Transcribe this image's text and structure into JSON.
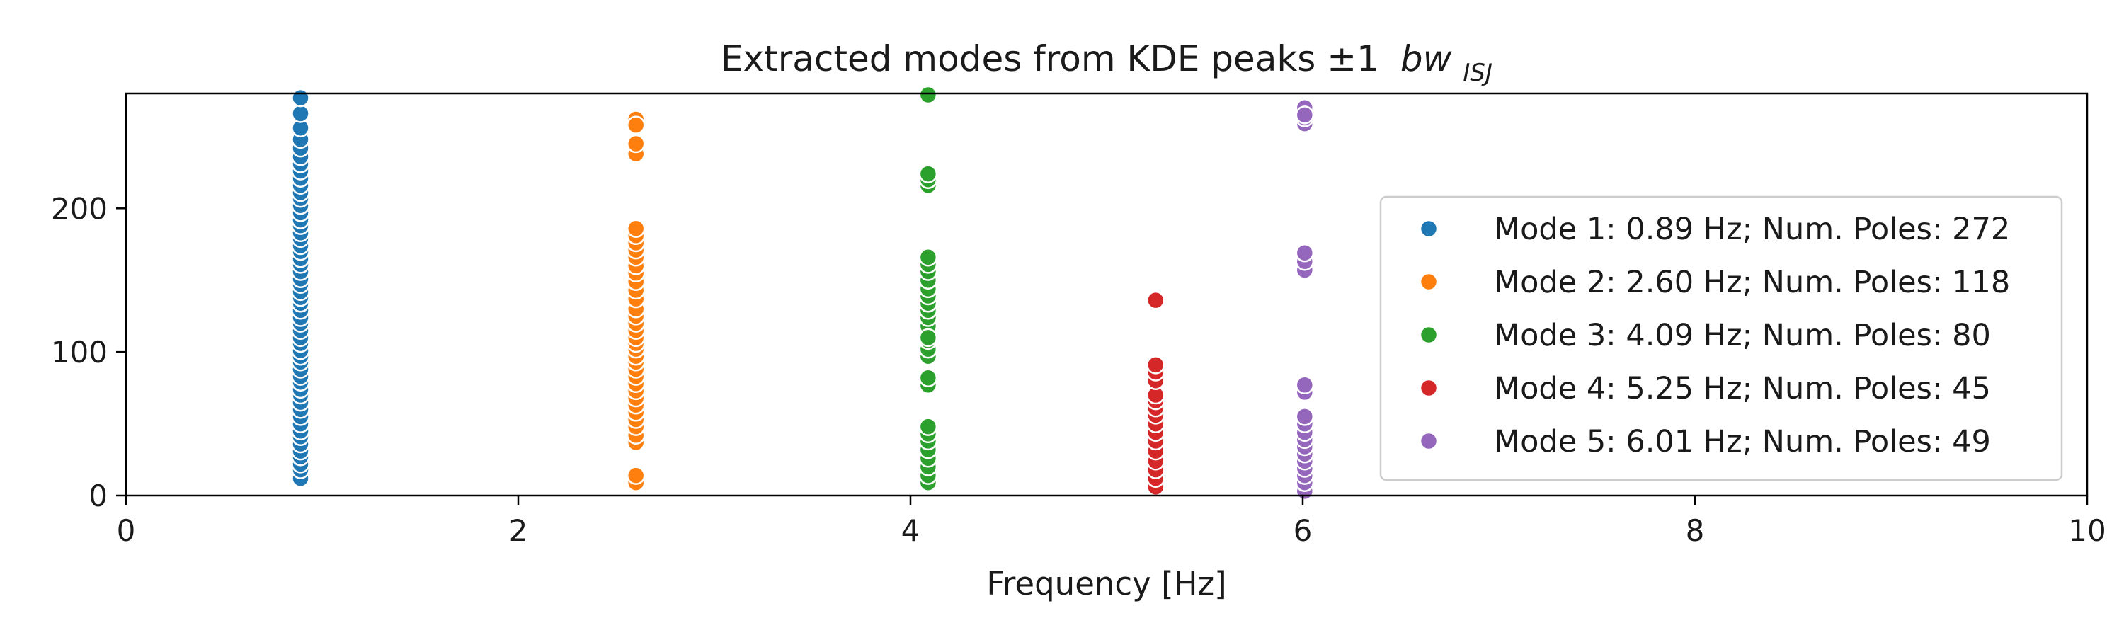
{
  "chart_data": {
    "type": "scatter",
    "title_main": "Extracted modes from KDE peaks ±1",
    "title_bw": "bw",
    "title_sub": "ISJ",
    "xlabel": "Frequency [Hz]",
    "ylabel": "",
    "xlim": [
      0,
      10
    ],
    "ylim": [
      0,
      280
    ],
    "xticks": [
      0,
      2,
      4,
      6,
      8,
      10
    ],
    "yticks": [
      0,
      100,
      200
    ],
    "xtick_labels": [
      "0",
      "2",
      "4",
      "6",
      "8",
      "10"
    ],
    "ytick_labels": [
      "0",
      "100",
      "200"
    ],
    "grid": false,
    "legend_position": "right",
    "series": [
      {
        "name": "Mode 1: 0.89 Hz; Num. Poles: 272",
        "color": "#1f77b4",
        "x": [
          0.89,
          0.89,
          0.89,
          0.89,
          0.89,
          0.89,
          0.89,
          0.89,
          0.89,
          0.89,
          0.89,
          0.89,
          0.89,
          0.89,
          0.89,
          0.89,
          0.89,
          0.89,
          0.89,
          0.89,
          0.89,
          0.89,
          0.89,
          0.89,
          0.89,
          0.89,
          0.89,
          0.89,
          0.89,
          0.89,
          0.89,
          0.89,
          0.89,
          0.89,
          0.89,
          0.89,
          0.89,
          0.89,
          0.89,
          0.89,
          0.89,
          0.89,
          0.89,
          0.89,
          0.89,
          0.89,
          0.89,
          0.89,
          0.89,
          0.89,
          0.89,
          0.89,
          0.89,
          0.89
        ],
        "y": [
          12,
          18,
          22,
          27,
          31,
          36,
          41,
          45,
          50,
          55,
          60,
          65,
          70,
          74,
          79,
          83,
          88,
          93,
          97,
          101,
          106,
          110,
          115,
          120,
          124,
          129,
          134,
          138,
          142,
          147,
          151,
          156,
          161,
          165,
          170,
          174,
          179,
          183,
          188,
          192,
          197,
          202,
          207,
          211,
          216,
          221,
          226,
          231,
          236,
          242,
          248,
          256,
          266,
          277
        ]
      },
      {
        "name": "Mode 2: 2.60 Hz; Num. Poles: 118",
        "color": "#ff7f0e",
        "x": [
          2.6,
          2.6,
          2.6,
          2.6,
          2.6,
          2.6,
          2.6,
          2.6,
          2.6,
          2.6,
          2.6,
          2.6,
          2.6,
          2.6,
          2.6,
          2.6,
          2.6,
          2.6,
          2.6,
          2.6,
          2.6,
          2.6,
          2.6,
          2.6,
          2.6,
          2.6,
          2.6,
          2.6,
          2.6,
          2.6,
          2.6,
          2.6,
          2.6,
          2.6,
          2.6,
          2.6
        ],
        "y": [
          9,
          14,
          37,
          42,
          48,
          53,
          58,
          63,
          68,
          73,
          78,
          83,
          88,
          93,
          97,
          102,
          106,
          110,
          115,
          120,
          125,
          130,
          137,
          143,
          149,
          155,
          160,
          166,
          171,
          176,
          181,
          186,
          238,
          245,
          262,
          258
        ]
      },
      {
        "name": "Mode 3: 4.09 Hz; Num. Poles: 80",
        "color": "#2ca02c",
        "x": [
          4.09,
          4.09,
          4.09,
          4.09,
          4.09,
          4.09,
          4.09,
          4.09,
          4.09,
          4.09,
          4.09,
          4.09,
          4.09,
          4.09,
          4.09,
          4.09,
          4.09,
          4.09,
          4.09,
          4.09,
          4.09,
          4.09,
          4.09,
          4.09,
          4.09,
          4.09,
          4.09,
          4.09,
          4.09
        ],
        "y": [
          9,
          14,
          20,
          26,
          32,
          38,
          43,
          48,
          77,
          82,
          97,
          102,
          108,
          113,
          118,
          124,
          129,
          134,
          139,
          144,
          150,
          156,
          161,
          166,
          216,
          220,
          224,
          279,
          110
        ]
      },
      {
        "name": "Mode 4: 5.25 Hz; Num. Poles: 45",
        "color": "#d62728",
        "x": [
          5.25,
          5.25,
          5.25,
          5.25,
          5.25,
          5.25,
          5.25,
          5.25,
          5.25,
          5.25,
          5.25,
          5.25,
          5.25,
          5.25,
          5.25,
          5.25
        ],
        "y": [
          6,
          12,
          18,
          24,
          31,
          38,
          44,
          50,
          56,
          61,
          66,
          70,
          80,
          86,
          91,
          136
        ]
      },
      {
        "name": "Mode 5: 6.01 Hz; Num. Poles: 49",
        "color": "#9467bd",
        "x": [
          6.01,
          6.01,
          6.01,
          6.01,
          6.01,
          6.01,
          6.01,
          6.01,
          6.01,
          6.01,
          6.01,
          6.01,
          6.01,
          6.01,
          6.01,
          6.01,
          6.01,
          6.01,
          6.01,
          6.01,
          6.01
        ],
        "y": [
          3,
          9,
          14,
          19,
          24,
          29,
          34,
          39,
          44,
          50,
          55,
          72,
          77,
          157,
          163,
          169,
          259,
          263,
          267,
          270,
          265
        ]
      }
    ]
  }
}
